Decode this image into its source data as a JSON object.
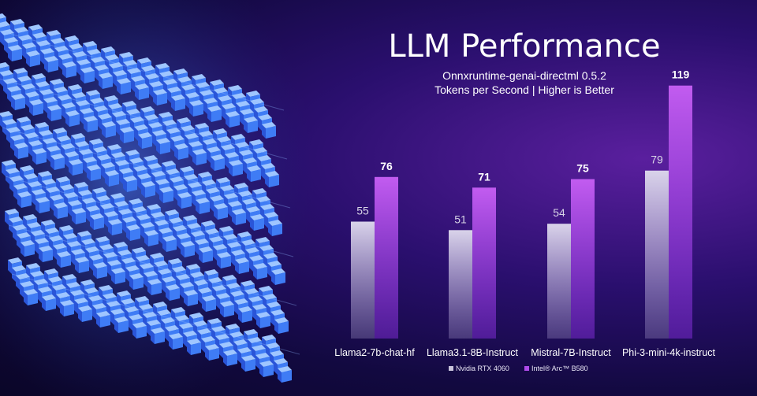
{
  "chart_data": {
    "type": "bar",
    "title": "LLM Performance",
    "subtitle": "Onnxruntime-genai-directml 0.5.2",
    "subtitle2": "Tokens per Second | Higher is Better",
    "categories": [
      "Llama2-7b-chat-hf",
      "Llama3.1-8B-Instruct",
      "Mistral-7B-Instruct",
      "Phi-3-mini-4k-instruct"
    ],
    "series": [
      {
        "name": "Nvidia RTX 4060",
        "values": [
          55,
          51,
          54,
          79
        ],
        "color": "#c9c3dc"
      },
      {
        "name": "Intel® Arc™ B580",
        "values": [
          76,
          71,
          75,
          119
        ],
        "color": "#b04bea"
      }
    ],
    "ylim": [
      0,
      125
    ],
    "grid": false,
    "legend": "bottom",
    "xlabel": "",
    "ylabel": ""
  }
}
